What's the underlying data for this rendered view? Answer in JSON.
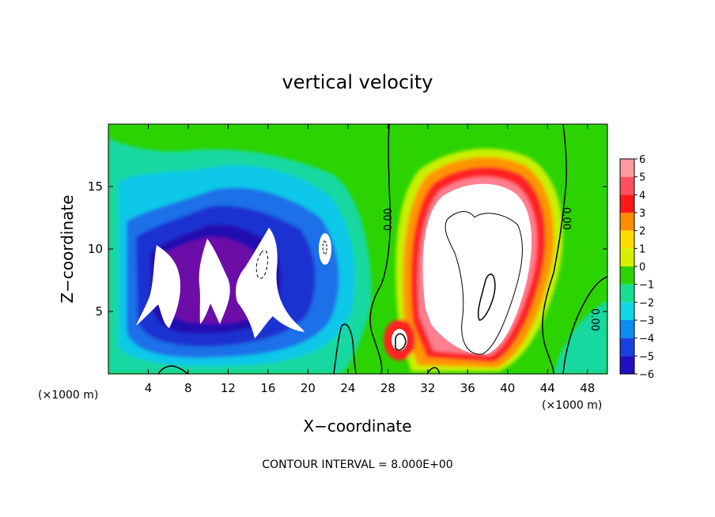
{
  "chart_data": {
    "type": "heatmap",
    "title": "vertical velocity",
    "xlabel": "X−coordinate",
    "ylabel": "Z−coordinate",
    "x_unit": "(×1000 m)",
    "y_unit": "(×1000 m)",
    "xlim": [
      0,
      50
    ],
    "ylim": [
      0,
      20
    ],
    "x_ticks": [
      4,
      8,
      12,
      16,
      20,
      24,
      28,
      32,
      36,
      40,
      44,
      48
    ],
    "y_ticks": [
      5,
      10,
      15
    ],
    "colorbar": {
      "levels": [
        "6",
        "5",
        "4",
        "3",
        "2",
        "1",
        "0",
        "−1",
        "−2",
        "−3",
        "−4",
        "−5",
        "−6"
      ],
      "colors": [
        "#ff9aa0",
        "#ff5060",
        "#ff1818",
        "#ff8c00",
        "#ffdc00",
        "#d8f000",
        "#2bd400",
        "#15e090",
        "#10d8e0",
        "#0a8cf0",
        "#1a40e0",
        "#2010c0",
        "#7a10b0"
      ]
    },
    "contour_interval": "CONTOUR INTERVAL = 8.000E+00",
    "contour_labels": [
      "0.00",
      "0.00",
      "0.00"
    ]
  }
}
